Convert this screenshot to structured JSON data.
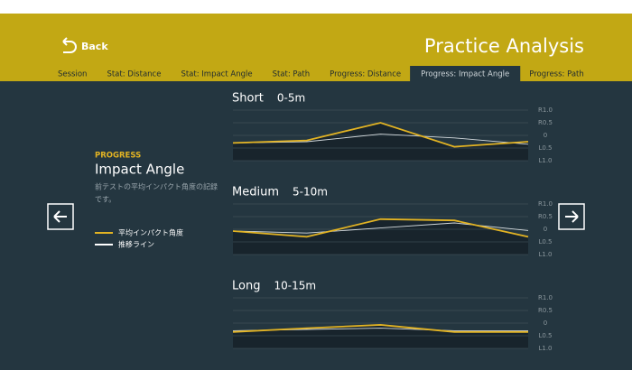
{
  "header": {
    "back": "Back",
    "title": "Practice Analysis"
  },
  "tabs": {
    "items": [
      "Session",
      "Stat: Distance",
      "Stat: Impact Angle",
      "Stat: Path",
      "Progress: Distance",
      "Progress: Impact Angle",
      "Progress: Path"
    ],
    "active": 5
  },
  "sidebar": {
    "kicker": "PROGRESS",
    "title": "Impact Angle",
    "description": [
      "前テストの平均インパクト角度の記録",
      "です。"
    ]
  },
  "chart_data": [
    {
      "type": "line",
      "title": "Short",
      "subtitle": "0-5m",
      "categories": [
        null,
        null,
        null,
        null,
        null
      ],
      "series": [
        {
          "name": "平均インパクト角度",
          "color": "#e2b323",
          "values": [
            -0.3,
            -0.2,
            0.5,
            -0.45,
            -0.25
          ]
        },
        {
          "name": "推移ライン",
          "color": "#d5dbde",
          "values": [
            -0.3,
            -0.25,
            0.05,
            -0.1,
            -0.35
          ]
        }
      ],
      "ylim": [
        -1,
        1
      ],
      "yticks": [
        {
          "value": 1,
          "label": "R1.0"
        },
        {
          "value": 0.5,
          "label": "R0.5"
        },
        0,
        {
          "value": -0.5,
          "label": "L0.5"
        },
        {
          "value": -1,
          "label": "L1.0"
        }
      ],
      "grid": true
    },
    {
      "type": "line",
      "title": "Medium",
      "subtitle": "5-10m",
      "categories": [
        null,
        null,
        null,
        null,
        null
      ],
      "series": [
        {
          "color": "#e2b323",
          "values": [
            -0.07,
            -0.3,
            0.4,
            0.35,
            -0.3
          ]
        },
        {
          "color": "#d5dbde",
          "values": [
            -0.07,
            -0.15,
            0.05,
            0.25,
            -0.05
          ]
        }
      ],
      "ylim": [
        -1,
        1
      ],
      "yticks": [
        {
          "value": 1,
          "label": "R1.0"
        },
        {
          "value": 0.5,
          "label": "R0.5"
        },
        0,
        {
          "value": -0.5,
          "label": "L0.5"
        },
        {
          "value": -1,
          "label": "L1.0"
        }
      ],
      "grid": true
    },
    {
      "type": "line",
      "title": "Long",
      "subtitle": "10-15m",
      "categories": [
        null,
        null,
        null,
        null,
        null
      ],
      "series": [
        {
          "color": "#e2b323",
          "values": [
            -0.35,
            -0.2,
            -0.07,
            -0.35,
            -0.35
          ]
        },
        {
          "color": "#d5dbde",
          "values": [
            -0.3,
            -0.25,
            -0.2,
            -0.3,
            -0.3
          ]
        }
      ],
      "ylim": [
        -1,
        1
      ],
      "yticks": [
        {
          "value": 1,
          "label": "R1.0"
        },
        {
          "value": 0.5,
          "label": "R0.5"
        },
        0,
        {
          "value": -0.5,
          "label": "L0.5"
        },
        {
          "value": -1,
          "label": "L1.0"
        }
      ],
      "grid": true
    }
  ]
}
